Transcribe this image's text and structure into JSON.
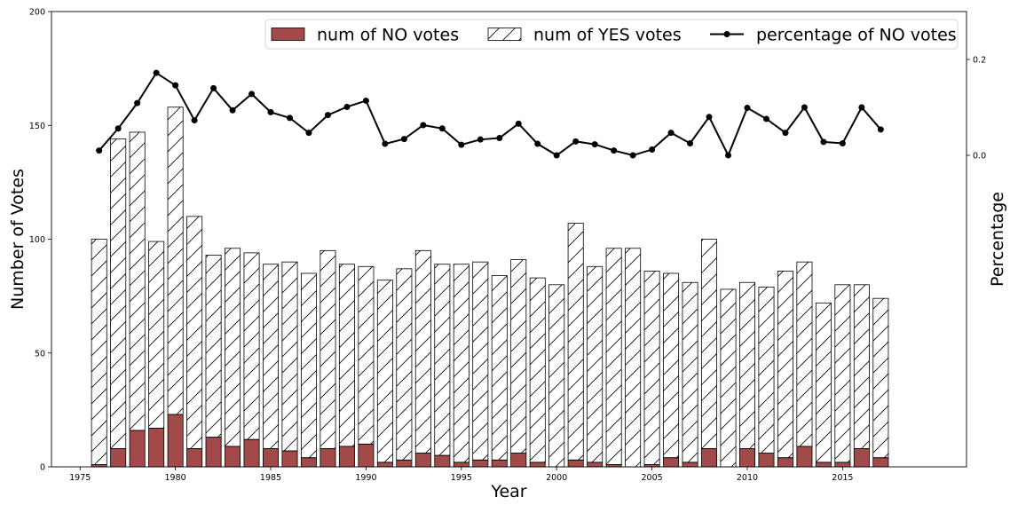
{
  "chart_data": {
    "type": "bar",
    "xlabel": "Year",
    "ylabel": "Number of Votes",
    "y2label": "Percentage",
    "legend_position": "top-right",
    "xlim": [
      1973.5,
      2021.5
    ],
    "ylim": [
      0,
      200
    ],
    "y2lim": [
      -0.65,
      0.3
    ],
    "x_ticks": [
      1975,
      1980,
      1985,
      1990,
      1995,
      2000,
      2005,
      2010,
      2015
    ],
    "y_ticks": [
      0,
      50,
      100,
      150,
      200
    ],
    "y2_ticks": [
      "0.0",
      "0.2"
    ],
    "y2_tick_values": [
      0.0,
      0.2
    ],
    "years": [
      1976,
      1977,
      1978,
      1979,
      1980,
      1981,
      1982,
      1983,
      1984,
      1985,
      1986,
      1987,
      1988,
      1989,
      1990,
      1991,
      1992,
      1993,
      1994,
      1995,
      1996,
      1997,
      1998,
      1999,
      2000,
      2001,
      2002,
      2003,
      2004,
      2005,
      2006,
      2007,
      2008,
      2009,
      2010,
      2011,
      2012,
      2013,
      2014,
      2015,
      2016,
      2017
    ],
    "series": [
      {
        "name": "num of NO votes",
        "kind": "bar",
        "color": "#a24a4a",
        "values": [
          1,
          8,
          16,
          17,
          23,
          8,
          13,
          9,
          12,
          8,
          7,
          4,
          8,
          9,
          10,
          2,
          3,
          6,
          5,
          2,
          3,
          3,
          6,
          2,
          0,
          3,
          2,
          1,
          0,
          1,
          4,
          2,
          8,
          0,
          8,
          6,
          4,
          9,
          2,
          2,
          8,
          4
        ]
      },
      {
        "name": "num of YES votes",
        "kind": "bar-hatched",
        "color": "#ffffff",
        "values": [
          99,
          136,
          131,
          82,
          135,
          102,
          80,
          87,
          82,
          81,
          83,
          81,
          87,
          80,
          78,
          80,
          84,
          89,
          84,
          87,
          87,
          81,
          85,
          81,
          80,
          104,
          86,
          95,
          96,
          85,
          81,
          79,
          92,
          78,
          73,
          73,
          82,
          81,
          70,
          78,
          72,
          70
        ]
      },
      {
        "name": "percentage of NO votes",
        "kind": "line",
        "color": "#000000",
        "values": [
          0.01,
          0.056,
          0.109,
          0.172,
          0.146,
          0.073,
          0.14,
          0.094,
          0.128,
          0.09,
          0.078,
          0.047,
          0.084,
          0.101,
          0.114,
          0.024,
          0.034,
          0.063,
          0.056,
          0.022,
          0.033,
          0.036,
          0.066,
          0.024,
          0.0,
          0.029,
          0.023,
          0.01,
          0.0,
          0.012,
          0.047,
          0.025,
          0.08,
          0.0,
          0.099,
          0.076,
          0.047,
          0.1,
          0.028,
          0.025,
          0.1,
          0.054
        ]
      }
    ]
  }
}
